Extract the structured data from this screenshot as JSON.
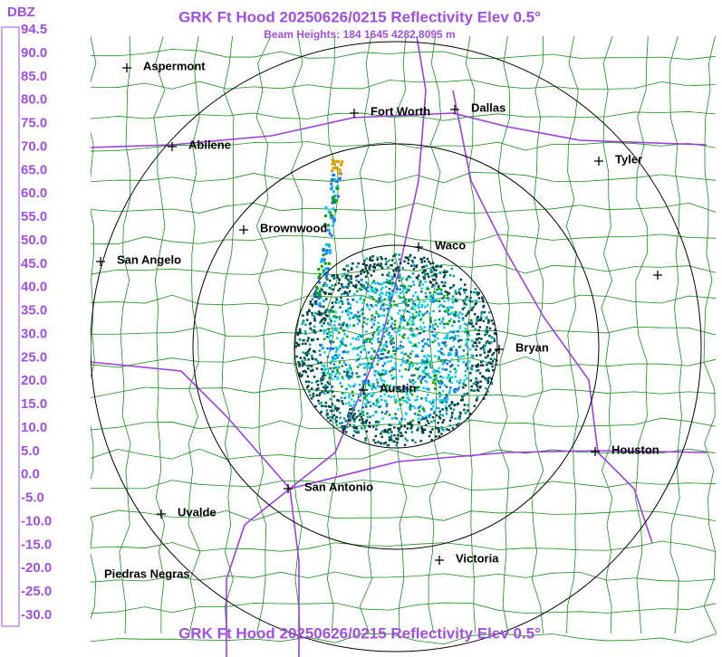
{
  "header": {
    "title": "GRK Ft Hood 20250626/0215 Reflectivity Elev 0.5°",
    "subtitle": "Beam Heights: 184 1645 4282 8095 m"
  },
  "legend": {
    "unit": "DBZ",
    "labels": [
      "94.5",
      "90.0",
      "85.0",
      "80.0",
      "75.0",
      "70.0",
      "65.0",
      "60.0",
      "55.0",
      "50.0",
      "45.0",
      "40.0",
      "35.0",
      "30.0",
      "25.0",
      "20.0",
      "15.0",
      "10.0",
      "5.0",
      "0.0",
      "-5.0",
      "-10.0",
      "-15.0",
      "-20.0",
      "-25.0",
      "-30.0"
    ],
    "colors": [
      "#ffffff",
      "#ffffff",
      "#f4f0fa",
      "#e0d0f0",
      "#a070e0",
      "#e000e0",
      "#b00000",
      "#e00000",
      "#ff2020",
      "#ff8000",
      "#e0b000",
      "#ffff00",
      "#007000",
      "#00a000",
      "#00e000",
      "#0000ff",
      "#2070ff",
      "#00c0ff",
      "#00e0e0",
      "#000000",
      "#ffffff",
      "#ffffff",
      "#ffffff",
      "#ffffff",
      "#ffffff"
    ]
  },
  "cities": [
    {
      "label": "Aspermont"
    },
    {
      "label": "Fort Worth"
    },
    {
      "label": "Dallas"
    },
    {
      "label": "Abilene"
    },
    {
      "label": "Tyler"
    },
    {
      "label": "Brownwood"
    },
    {
      "label": "Waco"
    },
    {
      "label": "San Angelo"
    },
    {
      "label": "Bryan"
    },
    {
      "label": "Austin"
    },
    {
      "label": "Houston"
    },
    {
      "label": "San Antonio"
    },
    {
      "label": "Uvalde"
    },
    {
      "label": "Victoria"
    },
    {
      "label": "Piedras Negras"
    }
  ]
}
